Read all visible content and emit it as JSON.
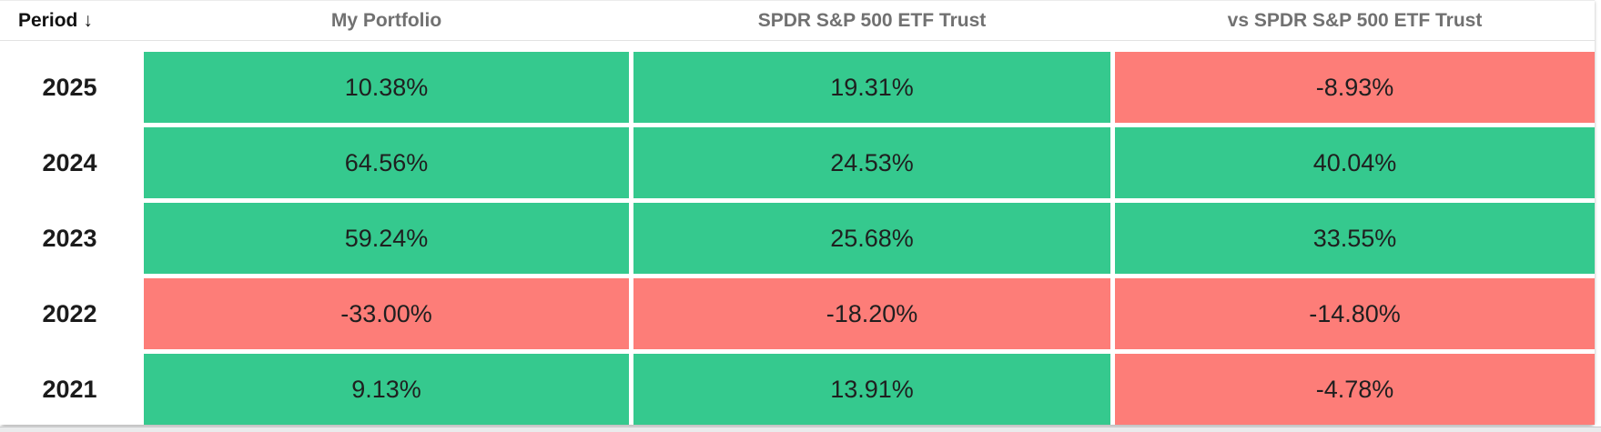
{
  "theme": {
    "positive_color": "#35c98e",
    "negative_color": "#fd7d78",
    "header_text_color": "#717171",
    "period_text_color": "#111111",
    "value_text_color": "#1f1f1f",
    "divider_color": "#e2e2e2",
    "page_below_color": "#eaebec"
  },
  "table": {
    "period_header": {
      "label": "Period",
      "sort_icon": "↓",
      "sort_direction": "descending"
    },
    "columns": [
      "My Portfolio",
      "SPDR S&P 500 ETF Trust",
      "vs SPDR S&P 500 ETF Trust"
    ],
    "rows": [
      {
        "period": "2025",
        "values": [
          {
            "text": "10.38%",
            "sign": "positive"
          },
          {
            "text": "19.31%",
            "sign": "positive"
          },
          {
            "text": "-8.93%",
            "sign": "negative"
          }
        ]
      },
      {
        "period": "2024",
        "values": [
          {
            "text": "64.56%",
            "sign": "positive"
          },
          {
            "text": "24.53%",
            "sign": "positive"
          },
          {
            "text": "40.04%",
            "sign": "positive"
          }
        ]
      },
      {
        "period": "2023",
        "values": [
          {
            "text": "59.24%",
            "sign": "positive"
          },
          {
            "text": "25.68%",
            "sign": "positive"
          },
          {
            "text": "33.55%",
            "sign": "positive"
          }
        ]
      },
      {
        "period": "2022",
        "values": [
          {
            "text": "-33.00%",
            "sign": "negative"
          },
          {
            "text": "-18.20%",
            "sign": "negative"
          },
          {
            "text": "-14.80%",
            "sign": "negative"
          }
        ]
      },
      {
        "period": "2021",
        "values": [
          {
            "text": "9.13%",
            "sign": "positive"
          },
          {
            "text": "13.91%",
            "sign": "positive"
          },
          {
            "text": "-4.78%",
            "sign": "negative"
          }
        ]
      }
    ]
  }
}
